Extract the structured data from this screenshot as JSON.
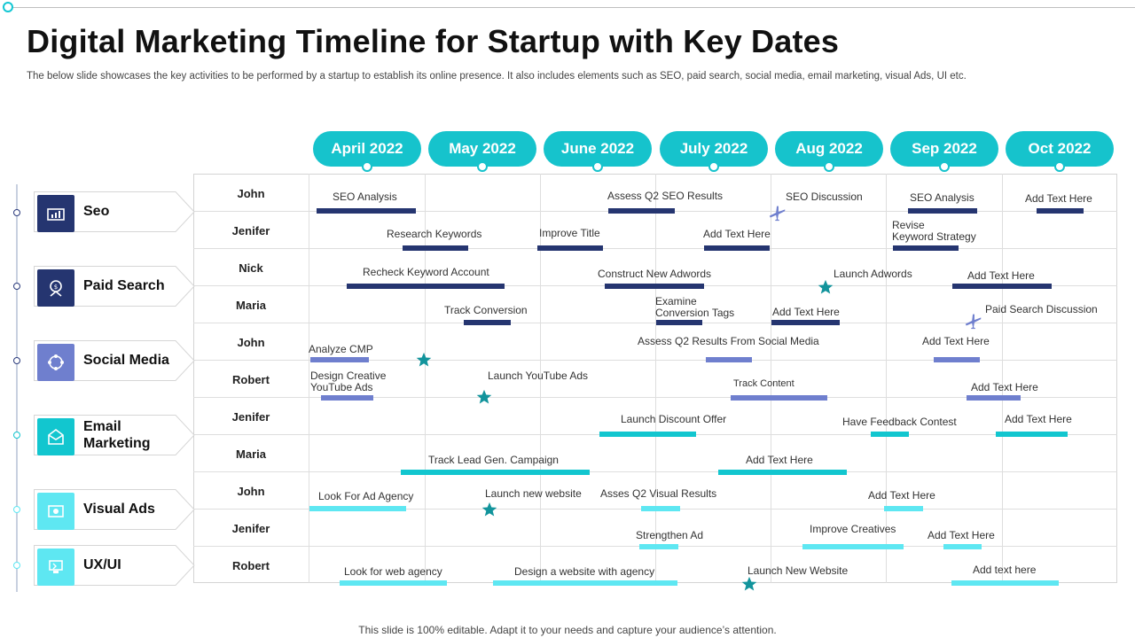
{
  "title": "Digital Marketing Timeline for Startup with Key Dates",
  "subtitle": "The below slide showcases the key activities to be performed by a startup to establish its online presence. It also includes elements such as SEO, paid search, social media, email marketing, visual Ads, UI etc.",
  "footer": "This slide is 100% editable. Adapt  it to your needs and capture your audience’s attention.",
  "colors": {
    "teal": "#16c3cc",
    "navy": "#253570",
    "periwinkle": "#6f7fce",
    "cyan": "#12c6cf",
    "light_cyan": "#5ee7f2"
  },
  "months": [
    "April 2022",
    "May 2022",
    "June  2022",
    "July 2022",
    "Aug 2022",
    "Sep 2022",
    "Oct 2022"
  ],
  "categories": [
    {
      "label": "Seo",
      "icon": "seo-chart-icon"
    },
    {
      "label": "Paid Search",
      "icon": "paid-search-icon"
    },
    {
      "label": "Social Media",
      "icon": "social-network-icon"
    },
    {
      "label": "Email\nMarketing",
      "icon": "email-icon"
    },
    {
      "label": "Visual Ads",
      "icon": "visual-ads-icon"
    },
    {
      "label": "UX/UI",
      "icon": "ux-ui-icon"
    }
  ],
  "people": [
    "John",
    "Jenifer",
    "Nick",
    "Maria",
    "John",
    "Robert",
    "Jenifer",
    "Maria",
    "John",
    "Jenifer",
    "Robert"
  ],
  "tasks": [
    "SEO Analysis",
    "Assess Q2 SEO Results",
    "SEO Discussion",
    "SEO Analysis",
    "Add Text Here",
    "Research Keywords",
    "Improve Title",
    "Add Text Here",
    "Revise\nKeyword Strategy",
    "Recheck Keyword Account",
    "Construct New Adwords",
    "Launch Adwords",
    "Add Text Here",
    "Track Conversion",
    "Examine\nConversion Tags",
    "Add Text Here",
    "Paid Search Discussion",
    "Analyze  CMP",
    "Assess Q2 Results From Social Media",
    "Add Text Here",
    "Design Creative\nYouTube Ads",
    "Launch YouTube Ads",
    "Track Content",
    "Add Text Here",
    "Launch Discount Offer",
    "Have Feedback Contest",
    "Add Text Here",
    "Track Lead Gen. Campaign",
    "Add Text Here",
    "Look For Ad Agency",
    "Launch new website",
    "Asses Q2 Visual Results",
    "Add Text Here",
    "Strengthen Ad",
    "Improve Creatives",
    "Add Text Here",
    "Look for web agency",
    "Design a website with agency",
    "Launch New Website",
    "Add text here"
  ]
}
